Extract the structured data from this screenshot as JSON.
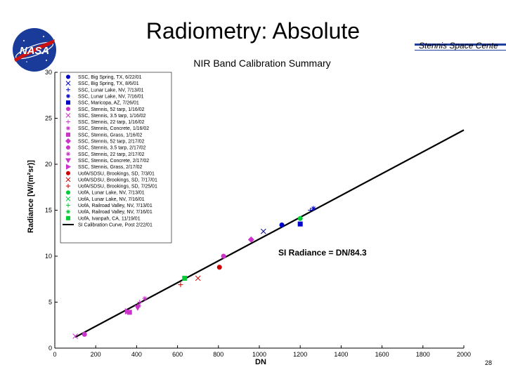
{
  "slide": {
    "title": "Radiometry: Absolute",
    "org_text": "Stennis Space Cente",
    "logo_text": "NASA",
    "page_number": "28",
    "accent_color": "#1f3f9f",
    "logo_blue": "#1b3b9a",
    "logo_red": "#cc1111"
  },
  "chart_data": {
    "type": "scatter",
    "title": "NIR Band Calibration Summary",
    "xlabel": "DN",
    "ylabel": "Radiance [W/(m²sr)]",
    "xlim": [
      0,
      2000
    ],
    "ylim": [
      0,
      30
    ],
    "xticks": [
      "0",
      "200",
      "400",
      "600",
      "800",
      "1000",
      "1200",
      "1400",
      "1600",
      "1800",
      "2000"
    ],
    "yticks": [
      "0",
      "5",
      "10",
      "15",
      "20",
      "25",
      "30"
    ],
    "grid": false,
    "legend_position": "top-left",
    "annotation": "SI Radiance = DN/84.3",
    "line": {
      "name": "SI Calibration Curve, Post 2/22/01",
      "x": [
        100,
        2000
      ],
      "y": [
        1.19,
        23.72
      ],
      "color": "#000000"
    },
    "series": [
      {
        "name": "SSC, Big Spring, TX, 6/22/01",
        "marker": "circle",
        "color": "#0000cc",
        "points": [
          [
            1110,
            13.4
          ]
        ]
      },
      {
        "name": "SSC, Big Spring, TX, 8/6/01",
        "marker": "x",
        "color": "#0000cc",
        "points": []
      },
      {
        "name": "SSC, Lunar Lake, NV, 7/13/01",
        "marker": "plus",
        "color": "#0000cc",
        "points": [
          [
            1250,
            15.0
          ]
        ]
      },
      {
        "name": "SSC, Lunar Lake, NV, 7/16/01",
        "marker": "star",
        "color": "#0000cc",
        "points": [
          [
            1265,
            15.2
          ]
        ]
      },
      {
        "name": "SSC, Maricopa, AZ, 7/26/01",
        "marker": "square",
        "color": "#0000cc",
        "points": [
          [
            1200,
            13.5
          ]
        ]
      },
      {
        "name": "SSC, Stennis, 52 tarp, 1/16/02",
        "marker": "circle",
        "color": "#cc33cc",
        "points": [
          [
            825,
            10.0
          ]
        ]
      },
      {
        "name": "SSC, Stennis, 3.5 tarp, 1/16/02",
        "marker": "x",
        "color": "#cc33cc",
        "points": [
          [
            100,
            1.3
          ]
        ]
      },
      {
        "name": "SSC, Stennis, 22 tarp, 1/16/02",
        "marker": "plus",
        "color": "#cc33cc",
        "points": [
          [
            415,
            5.0
          ]
        ]
      },
      {
        "name": "SSC, Stennis, Concrete, 1/16/02",
        "marker": "star",
        "color": "#cc33cc",
        "points": [
          [
            440,
            5.4
          ]
        ]
      },
      {
        "name": "SSC, Stennis, Grass, 1/16/02",
        "marker": "square",
        "color": "#cc33cc",
        "points": [
          [
            365,
            3.9
          ]
        ]
      },
      {
        "name": "SSC, Stennis, 52 tarp, 2/17/02",
        "marker": "diamond",
        "color": "#cc33cc",
        "points": [
          [
            960,
            11.8
          ]
        ]
      },
      {
        "name": "SSC, Stennis, 3.5 tarp, 2/17/02",
        "marker": "circle",
        "color": "#cc33cc",
        "points": [
          [
            145,
            1.5
          ]
        ]
      },
      {
        "name": "SSC, Stennis, 22 tarp, 2/17/02",
        "marker": "star",
        "color": "#cc33cc",
        "points": [
          [
            410,
            4.6
          ]
        ]
      },
      {
        "name": "SSC, Stennis, Concrete, 2/17/02",
        "marker": "triangle-down",
        "color": "#cc33cc",
        "points": [
          [
            405,
            4.4
          ]
        ]
      },
      {
        "name": "SSC, Stennis, Grass, 2/17/02",
        "marker": "triangle-right",
        "color": "#cc33cc",
        "points": [
          [
            355,
            4.0
          ]
        ]
      },
      {
        "name": "UofA/SDSU, Brookings, SD, 7/3/01",
        "marker": "circle",
        "color": "#cc0000",
        "points": [
          [
            805,
            8.8
          ]
        ]
      },
      {
        "name": "UofA/SDSU, Brookings, SD, 7/17/01",
        "marker": "x",
        "color": "#cc0000",
        "points": [
          [
            700,
            7.6
          ]
        ]
      },
      {
        "name": "UofA/SDSU, Brookings, SD, 7/25/01",
        "marker": "plus",
        "color": "#cc0000",
        "points": [
          [
            615,
            6.9
          ]
        ]
      },
      {
        "name": "UofA, Lunar Lake, NV, 7/13/01",
        "marker": "circle",
        "color": "#00cc33",
        "points": [
          [
            1200,
            14.1
          ]
        ]
      },
      {
        "name": "UofA, Lunar Lake, NV, 7/16/01",
        "marker": "x",
        "color": "#00cc33",
        "points": []
      },
      {
        "name": "UofA, Railroad Valley, NV, 7/13/01",
        "marker": "plus",
        "color": "#00cc33",
        "points": []
      },
      {
        "name": "UofA, Railroad Valley, NV, 7/16/01",
        "marker": "star",
        "color": "#00cc33",
        "points": []
      },
      {
        "name": "UofA, Ivanpah, CA, 11/19/01",
        "marker": "square",
        "color": "#00cc33",
        "points": [
          [
            635,
            7.6
          ]
        ]
      },
      {
        "name": "SSC, Big Spring, TX, 8/6/01 (point)",
        "marker": "x",
        "color": "#000099",
        "points": [
          [
            1020,
            12.7
          ]
        ]
      }
    ]
  }
}
